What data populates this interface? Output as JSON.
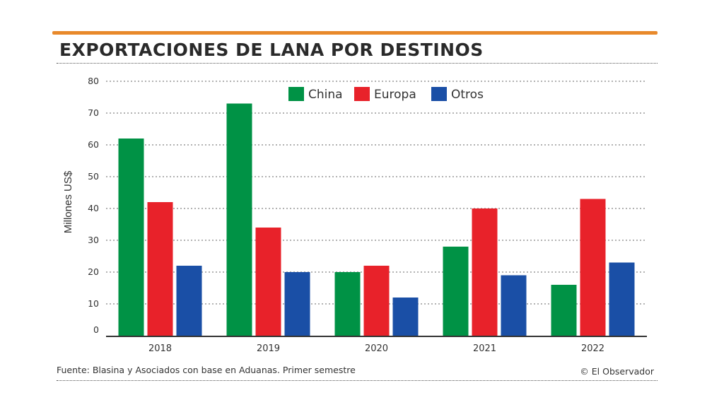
{
  "header": {
    "title": "EXPORTACIONES DE LANA POR DESTINOS",
    "accent_color": "#e8892b"
  },
  "footer": {
    "source": "Fuente: Blasina y Asociados con base en Aduanas. Primer semestre",
    "credit": "© El Observador"
  },
  "chart_data": {
    "type": "bar",
    "title": "EXPORTACIONES DE LANA POR DESTINOS",
    "ylabel": "Millones US$",
    "xlabel": "",
    "categories": [
      "2018",
      "2019",
      "2020",
      "2021",
      "2022"
    ],
    "yticks": [
      "0",
      "10",
      "20",
      "30",
      "40",
      "50",
      "60",
      "70",
      "80"
    ],
    "ylim": [
      0,
      80
    ],
    "grid": "horizontal dotted",
    "legend_position": "top",
    "series": [
      {
        "name": "China",
        "color": "#009245",
        "values": [
          62,
          73,
          20,
          28,
          16
        ]
      },
      {
        "name": "Europa",
        "color": "#e8222a",
        "values": [
          42,
          34,
          22,
          40,
          43
        ]
      },
      {
        "name": "Otros",
        "color": "#1a4fa6",
        "values": [
          22,
          20,
          12,
          19,
          23
        ]
      }
    ]
  }
}
